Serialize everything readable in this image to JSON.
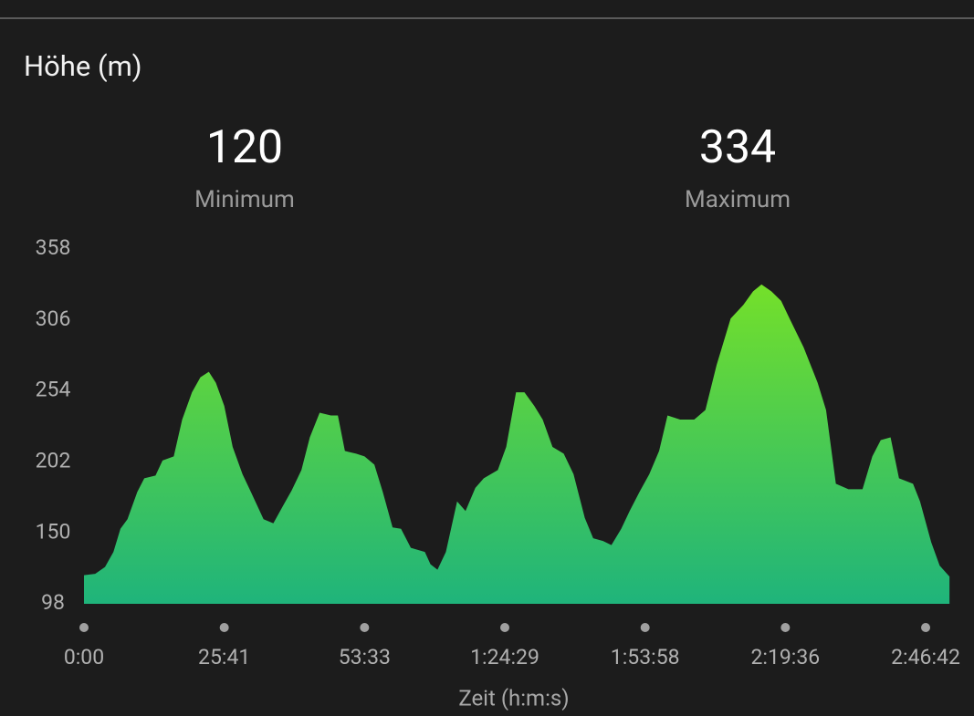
{
  "chart_data": {
    "type": "area",
    "title": "Höhe (m)",
    "stats": [
      {
        "value": 120,
        "label": "Minimum"
      },
      {
        "value": 334,
        "label": "Maximum"
      }
    ],
    "xlabel": "Zeit (h:m:s)",
    "x": [
      0,
      0.08,
      0.15,
      0.21,
      0.26,
      0.31,
      0.38,
      0.43,
      0.51,
      0.56,
      0.64,
      0.7,
      0.77,
      0.83,
      0.89,
      0.94,
      1.0,
      1.06,
      1.13,
      1.19,
      1.28,
      1.35,
      1.42,
      1.48,
      1.55,
      1.61,
      1.68,
      1.76,
      1.81,
      1.86,
      1.94,
      2.0,
      2.07,
      2.13,
      2.2,
      2.26,
      2.33,
      2.43,
      2.47,
      2.52,
      2.58,
      2.66,
      2.72,
      2.79,
      2.85,
      2.95,
      3.01,
      3.08,
      3.14,
      3.21,
      3.27,
      3.34,
      3.42,
      3.49,
      3.57,
      3.63,
      3.7,
      3.76,
      3.83,
      3.89,
      3.96,
      4.03,
      4.1,
      4.16,
      4.25,
      4.35,
      4.43,
      4.51,
      4.61,
      4.7,
      4.77,
      4.83,
      4.9,
      4.97,
      5.03,
      5.13,
      5.23,
      5.29,
      5.36,
      5.45,
      5.55,
      5.62,
      5.68,
      5.75,
      5.81,
      5.91,
      5.96,
      6.04,
      6.1,
      6.17
    ],
    "values": [
      119,
      120,
      125,
      136,
      153,
      160,
      180,
      190,
      192,
      203,
      206,
      233,
      253,
      264,
      268,
      260,
      243,
      213,
      193,
      180,
      160,
      157,
      170,
      181,
      196,
      220,
      238,
      236,
      236,
      210,
      208,
      206,
      200,
      180,
      154,
      153,
      139,
      136,
      127,
      123,
      136,
      173,
      166,
      183,
      190,
      196,
      213,
      253,
      253,
      243,
      233,
      213,
      208,
      193,
      161,
      146,
      144,
      141,
      153,
      166,
      180,
      193,
      210,
      236,
      233,
      233,
      240,
      273,
      307,
      317,
      327,
      332,
      327,
      320,
      307,
      286,
      260,
      240,
      186,
      182,
      182,
      206,
      218,
      220,
      190,
      186,
      173,
      143,
      126,
      118
    ],
    "gradient": [
      "#74e02a",
      "#1fb47b"
    ],
    "xlim": [
      0,
      6.17
    ],
    "ylim": [
      98,
      358
    ],
    "yticks": [
      98,
      150,
      202,
      254,
      306,
      358
    ],
    "xticks": [
      {
        "value": 0,
        "label": "0:00"
      },
      {
        "value": 1,
        "label": "25:41"
      },
      {
        "value": 2,
        "label": "53:33"
      },
      {
        "value": 3,
        "label": "1:24:29"
      },
      {
        "value": 4,
        "label": "1:53:58"
      },
      {
        "value": 5,
        "label": "2:19:36"
      },
      {
        "value": 6,
        "label": "2:46:42"
      }
    ]
  }
}
